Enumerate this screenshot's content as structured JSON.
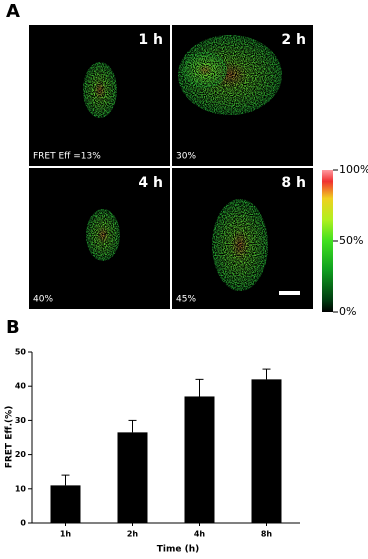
{
  "panel_a": {
    "label": "A",
    "images": [
      {
        "time": "1 h",
        "efficiency": "FRET Eff =13%"
      },
      {
        "time": "2 h",
        "efficiency": "30%"
      },
      {
        "time": "4 h",
        "efficiency": "40%"
      },
      {
        "time": "8 h",
        "efficiency": "45%"
      }
    ],
    "colorbar": {
      "lim": [
        0,
        100
      ],
      "ticks": [
        {
          "value": 100,
          "label": "100%"
        },
        {
          "value": 50,
          "label": "50%"
        },
        {
          "value": 0,
          "label": "0%"
        }
      ]
    }
  },
  "chart_data": {
    "type": "bar",
    "label": "B",
    "x_label": "Time (h)",
    "y_label": "FRET Eff.(%)",
    "categories": [
      "1h",
      "2h",
      "4h",
      "8h"
    ],
    "values": [
      11,
      26.5,
      37,
      42
    ],
    "errors": [
      3,
      3.5,
      5,
      3
    ],
    "color": "#000000",
    "ylim": [
      0,
      50
    ],
    "yticks": [
      0,
      10,
      20,
      30,
      40,
      50
    ]
  }
}
